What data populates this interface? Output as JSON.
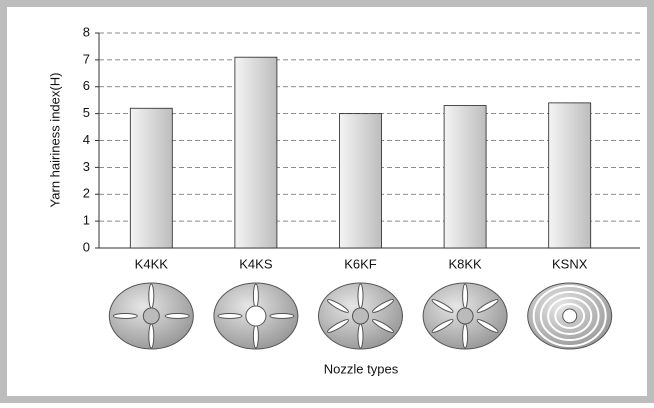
{
  "chart_data": {
    "type": "bar",
    "y_label": "Yarn hairiness index(H)",
    "x_label": "Nozzle types",
    "categories": [
      "K4KK",
      "K4KS",
      "K6KF",
      "K8KK",
      "KSNX"
    ],
    "values": [
      5.2,
      7.1,
      5.0,
      5.3,
      5.4
    ],
    "ylim": [
      0,
      8
    ],
    "yticks": [
      0,
      1,
      2,
      3,
      4,
      5,
      6,
      7,
      8
    ],
    "grid": true
  }
}
